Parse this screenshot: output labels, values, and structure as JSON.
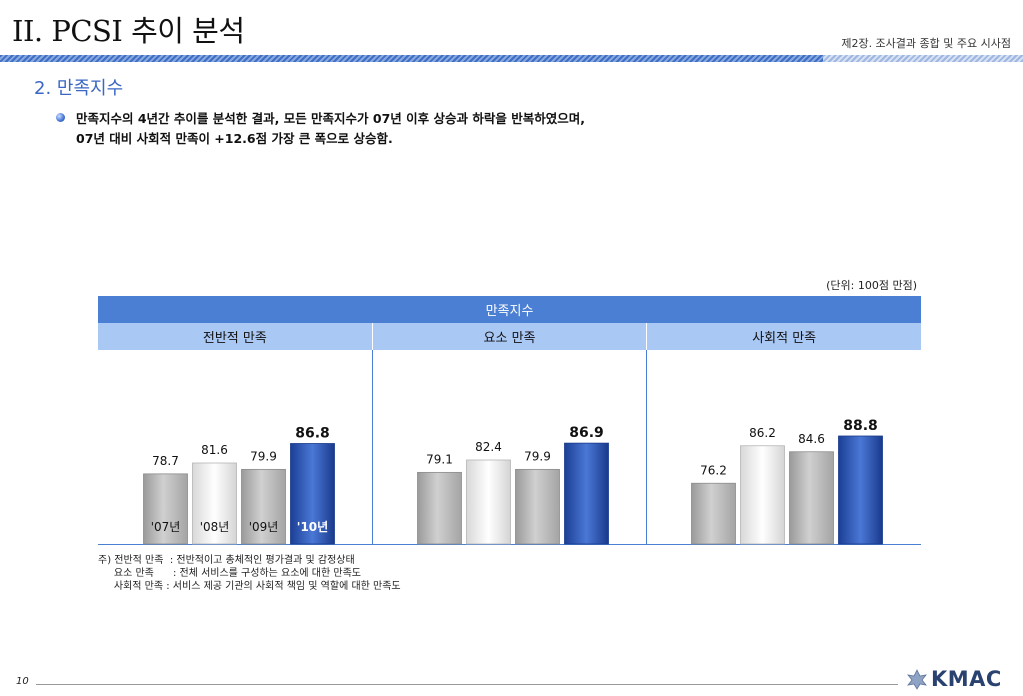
{
  "header": {
    "title": "II. PCSI 추이 분석",
    "chapter": "제2장. 조사결과 종합 및 주요 시사점"
  },
  "section": {
    "title": "2. 만족지수",
    "bullet_line_1": "만족지수의 4년간 추이를 분석한 결과, 모든 만족지수가 07년 이후 상승과 하락을 반복하였으며,",
    "bullet_line_2": "07년 대비 사회적 만족이 +12.6점 가장 큰 폭으로 상승함."
  },
  "table": {
    "unit": "(단위: 100점 만점)",
    "title": "만족지수",
    "groups": [
      "전반적 만족",
      "요소 만족",
      "사회적 만족"
    ]
  },
  "notes": {
    "line_1": "주) 전반적 만족  : 전반적이고 총체적인 평가결과 및 감정상태",
    "line_2": "     요소 만족      : 전체 서비스를 구성하는 요소에 대한 만족도",
    "line_3": "     사회적 만족 : 서비스 제공 기관의 사회적 책임 및 역할에 대한 만족도"
  },
  "footer": {
    "page_number": "10",
    "logo_text": "KMAC"
  },
  "colors": {
    "accent_blue": "#2b54b5",
    "header_blue": "#4b7fd3",
    "subheader_blue": "#aac8f4",
    "bar_gray": "#b3b3b3",
    "bar_light": "#f2f2f2"
  },
  "chart_data": {
    "type": "bar",
    "title": "만족지수",
    "ylabel": "",
    "xlabel": "",
    "categories": [
      "'07년",
      "'08년",
      "'09년",
      "'10년"
    ],
    "groups": [
      {
        "name": "전반적 만족",
        "values": [
          78.7,
          81.6,
          79.9,
          86.8
        ]
      },
      {
        "name": "요소 만족",
        "values": [
          79.1,
          82.4,
          79.9,
          86.9
        ]
      },
      {
        "name": "사회적 만족",
        "values": [
          76.2,
          86.2,
          84.6,
          88.8
        ]
      }
    ],
    "ylim": [
      60,
      100
    ],
    "grid": false,
    "legend": "none"
  }
}
